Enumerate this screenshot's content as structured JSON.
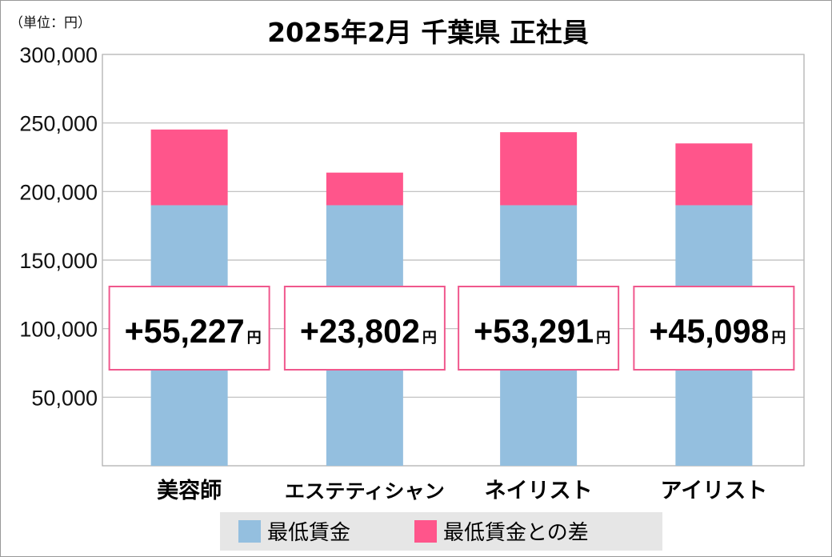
{
  "chart_data": {
    "type": "bar",
    "stacked": true,
    "title": "2025年2月 千葉県 正社員",
    "unit_label": "（単位：円）",
    "categories": [
      "美容師",
      "エステティシャン",
      "ネイリスト",
      "アイリスト"
    ],
    "series": [
      {
        "name": "最低賃金",
        "color": "#94bfdf",
        "values": [
          190000,
          190000,
          190000,
          190000
        ]
      },
      {
        "name": "最低賃金との差",
        "color": "#ff558b",
        "values": [
          55227,
          23802,
          53291,
          45098
        ]
      }
    ],
    "data_labels": [
      "+55,227",
      "+23,802",
      "+53,291",
      "+45,098"
    ],
    "data_label_unit": "円",
    "yticks": [
      "50,000",
      "100,000",
      "150,000",
      "200,000",
      "250,000",
      "300,000"
    ],
    "ytick_values": [
      50000,
      100000,
      150000,
      200000,
      250000,
      300000
    ],
    "ylim": [
      0,
      300000
    ],
    "grid": true,
    "legend_placement": "bottom"
  }
}
